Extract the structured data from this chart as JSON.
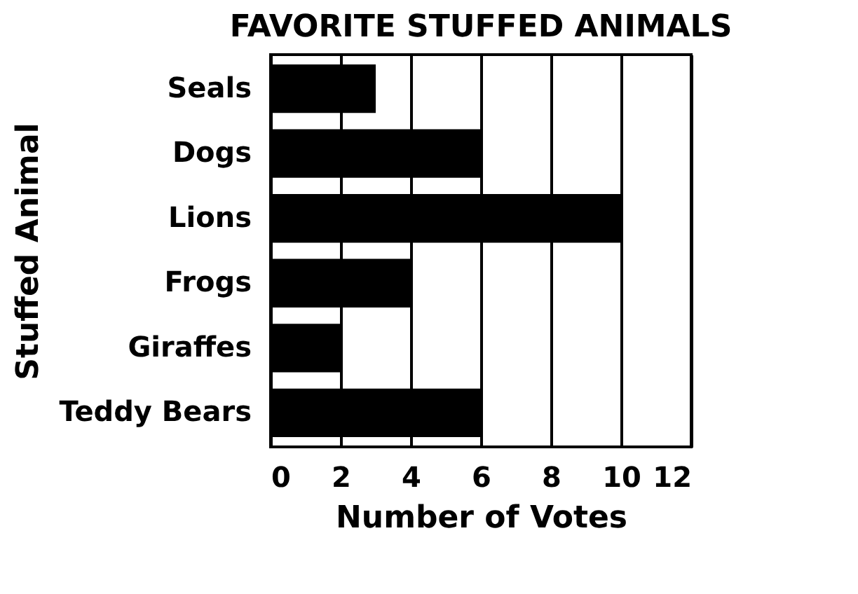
{
  "chart_data": {
    "type": "bar",
    "orientation": "horizontal",
    "title": "FAVORITE STUFFED ANIMALS",
    "xlabel": "Number of Votes",
    "ylabel": "Stuffed Animal",
    "categories": [
      "Seals",
      "Dogs",
      "Lions",
      "Frogs",
      "Giraffes",
      "Teddy Bears"
    ],
    "values": [
      3,
      6,
      10,
      4,
      2,
      6
    ],
    "color": "#000000",
    "xlim": [
      0,
      12
    ],
    "xticks": [
      0,
      2,
      4,
      6,
      8,
      10,
      12
    ],
    "grid": "x"
  }
}
